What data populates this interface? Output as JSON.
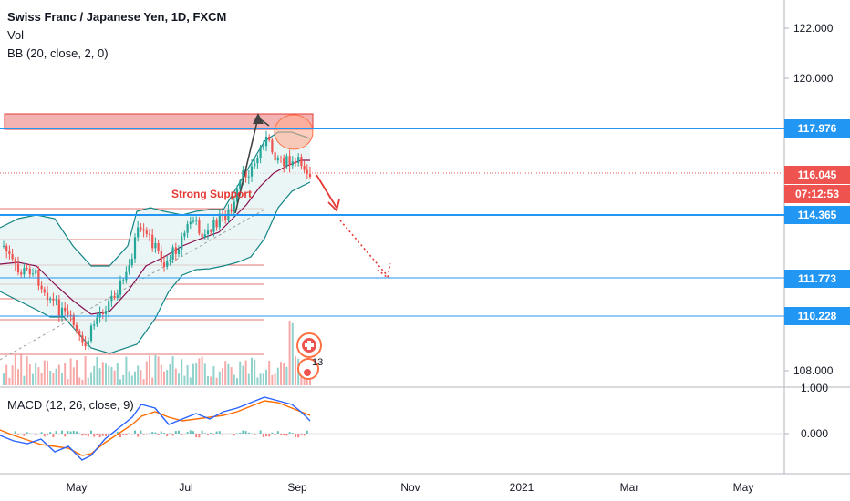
{
  "legend": {
    "title": "Swiss Franc / Japanese Yen, 1D, FXCM",
    "vol": "Vol",
    "bb": "BB (20, close, 2, 0)",
    "macd": "MACD (12, 26, close, 9)"
  },
  "annotation": "Strong Support",
  "price_axis": [
    "122.000",
    "120.000",
    "108.000"
  ],
  "macd_axis": [
    "1.000",
    "0.000"
  ],
  "price_tags": [
    {
      "label": "117.976",
      "color": "#2196f3"
    },
    {
      "label": "116.045",
      "color": "#ef5350"
    },
    {
      "label": "07:12:53",
      "color": "#ef5350"
    },
    {
      "label": "114.365",
      "color": "#2196f3"
    },
    {
      "label": "111.773",
      "color": "#2196f3"
    },
    {
      "label": "110.228",
      "color": "#2196f3"
    }
  ],
  "time_axis": [
    "May",
    "Jul",
    "Sep",
    "Nov",
    "2021",
    "Mar",
    "May"
  ],
  "badge_count": "13",
  "colors": {
    "up": "#26a69a",
    "down": "#ef5350",
    "level": "#2196f3",
    "bb_fill": "#e0f2f1",
    "bb_line": "#138484",
    "sma": "#880e4f",
    "macd_line": "#2962ff",
    "signal_line": "#ff6d00"
  }
}
